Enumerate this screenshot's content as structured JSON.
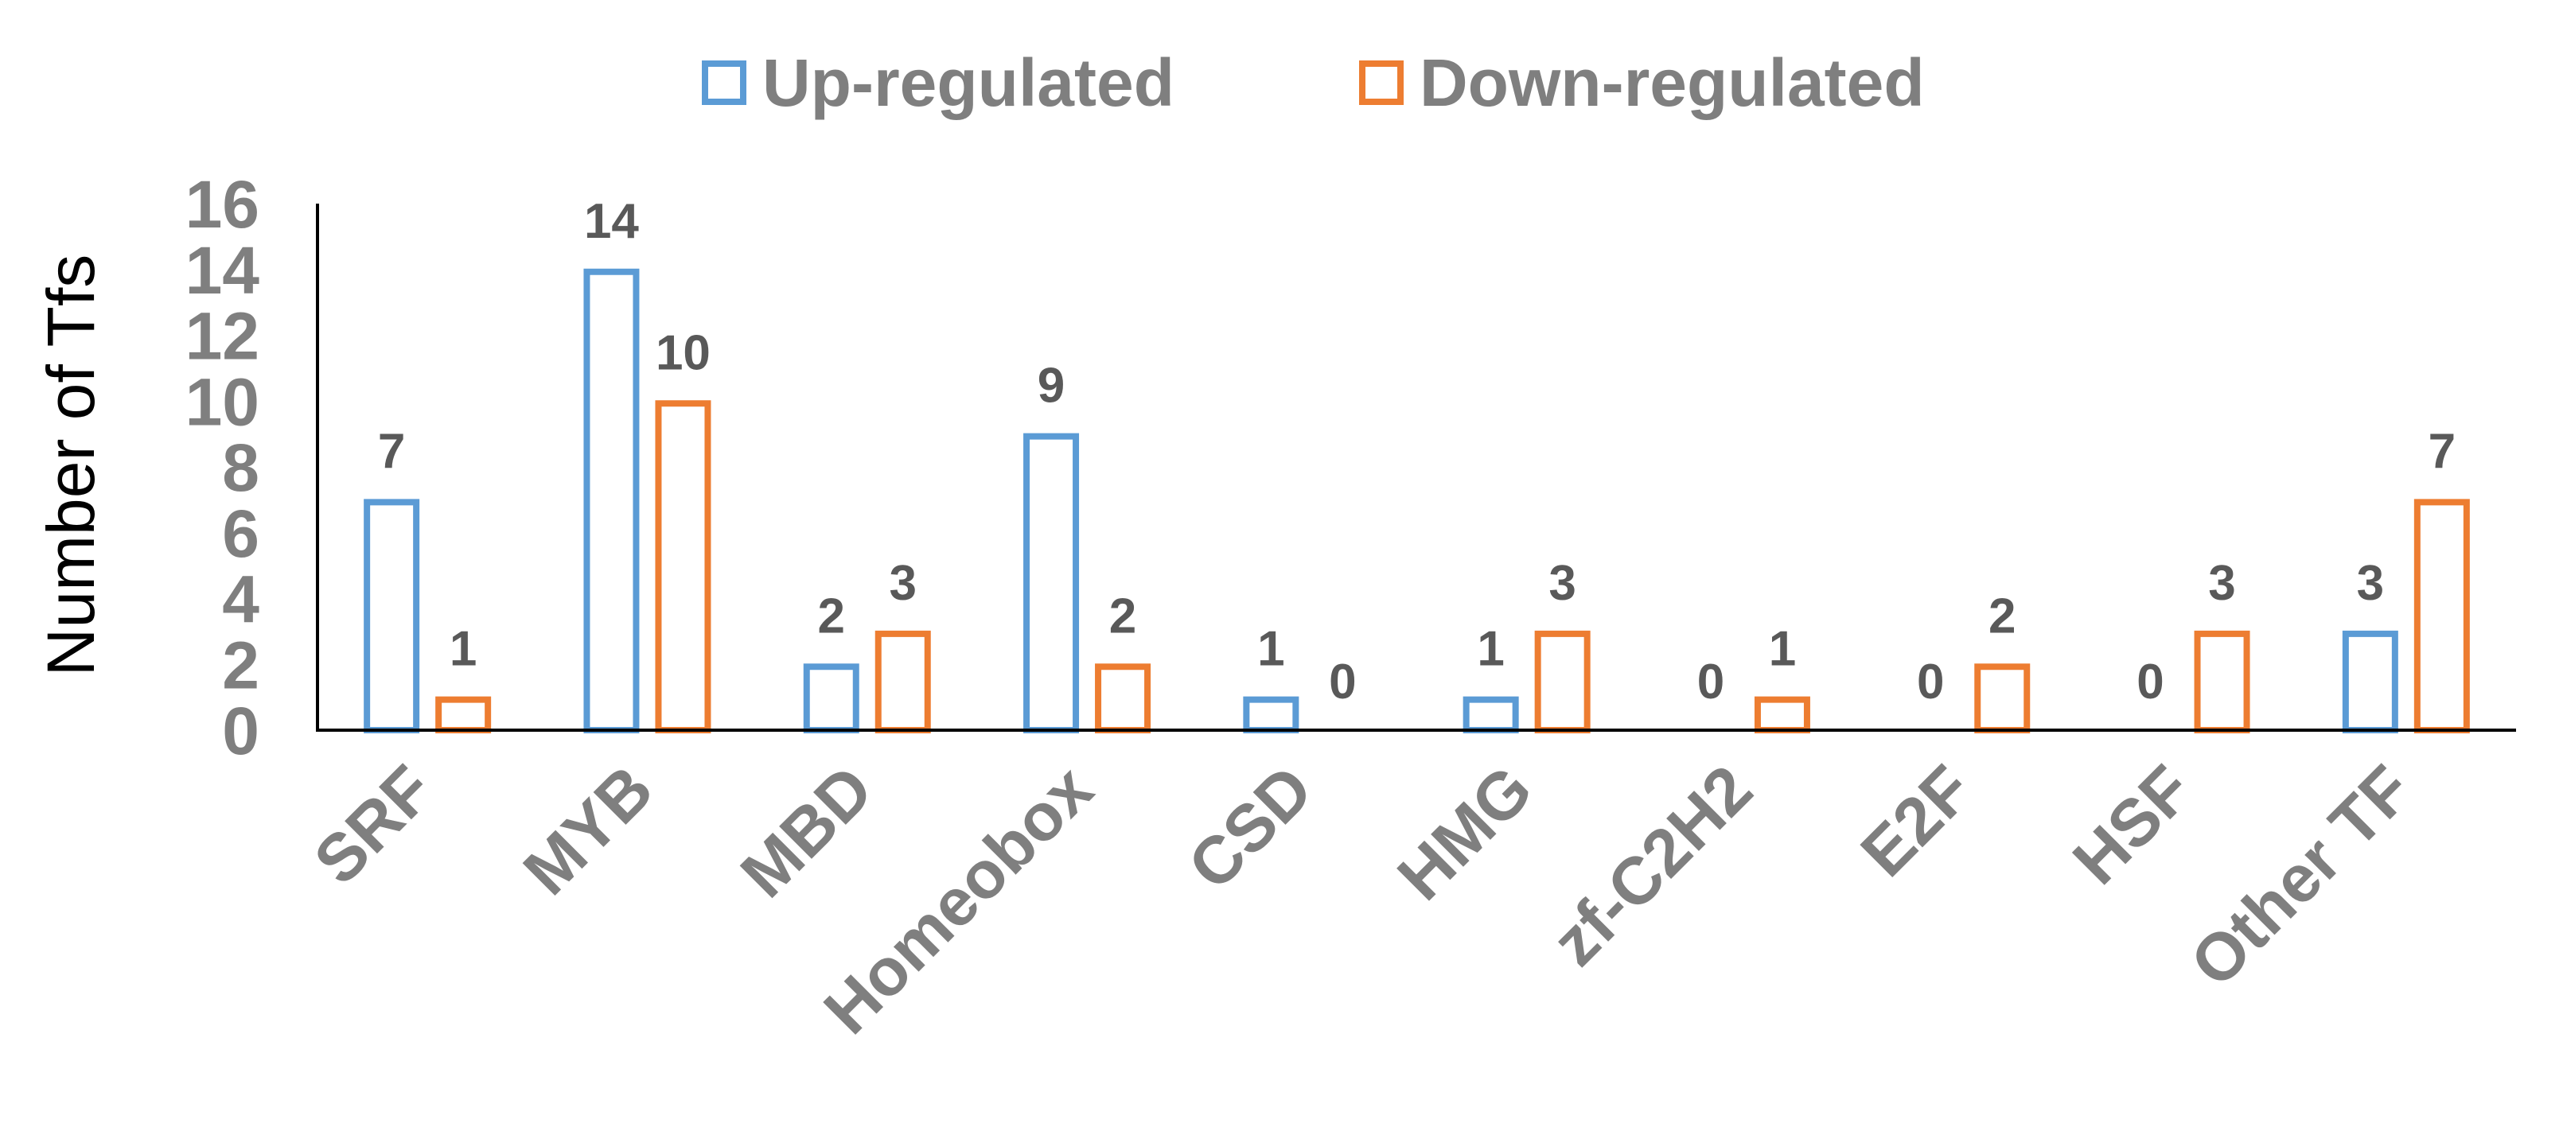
{
  "chart_data": {
    "type": "bar",
    "title": "",
    "xlabel": "",
    "ylabel": "Number of Tfs",
    "ylim": [
      0,
      16
    ],
    "yticks": [
      0,
      2,
      4,
      6,
      8,
      10,
      12,
      14,
      16
    ],
    "grid": false,
    "legend_position": "top-center",
    "categories": [
      "SRF",
      "MYB",
      "MBD",
      "Homeobox",
      "CSD",
      "HMG",
      "zf-C2H2",
      "E2F",
      "HSF",
      "Other TF"
    ],
    "series": [
      {
        "name": "Up-regulated",
        "color": "#5b9bd5",
        "values": [
          7,
          14,
          2,
          9,
          1,
          1,
          0,
          0,
          0,
          3
        ]
      },
      {
        "name": "Down-regulated",
        "color": "#ed7d31",
        "values": [
          1,
          10,
          3,
          2,
          0,
          3,
          1,
          2,
          3,
          7
        ]
      }
    ],
    "text_color": "#7f7f7f",
    "label_color": "#595959"
  }
}
